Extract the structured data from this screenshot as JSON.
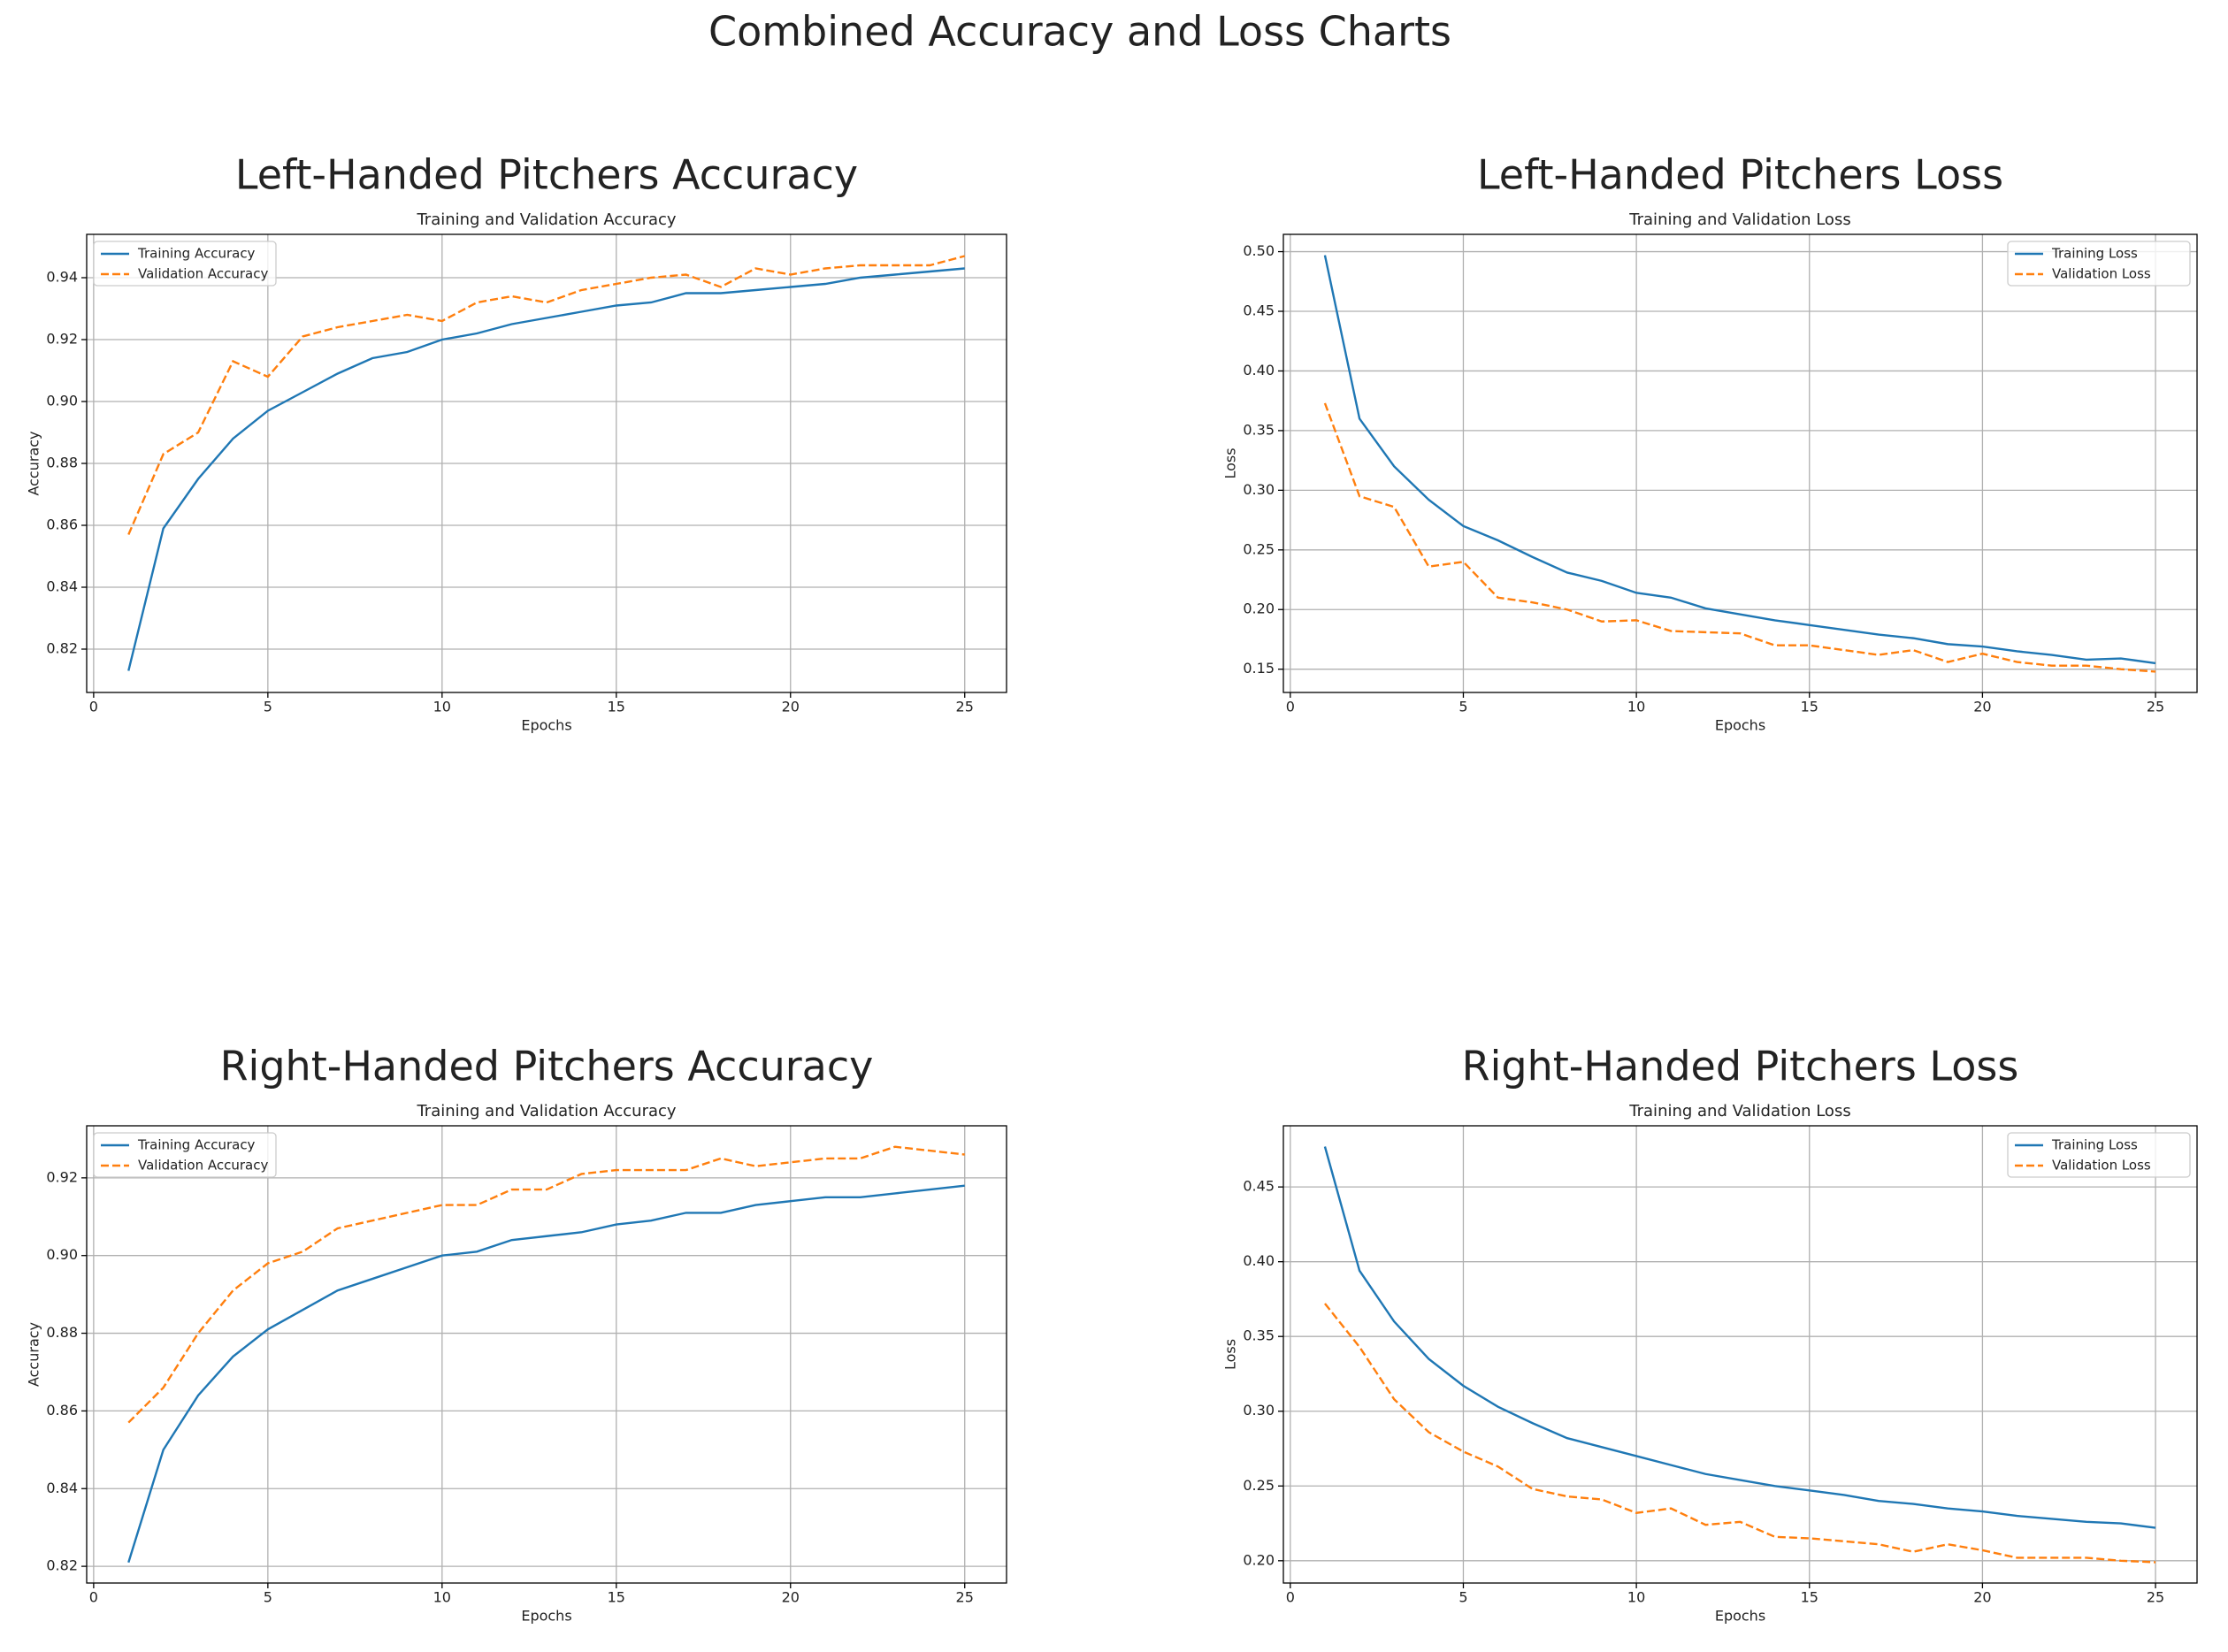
{
  "title": "Combined Accuracy and Loss Charts",
  "chart_data": [
    {
      "type": "line",
      "title": "Left-Handed Pitchers Accuracy",
      "subtitle": "Training and Validation Accuracy",
      "x_label": "Epochs",
      "y_label": "Accuracy",
      "x": [
        1,
        2,
        3,
        4,
        5,
        6,
        7,
        8,
        9,
        10,
        11,
        12,
        13,
        14,
        15,
        16,
        17,
        18,
        19,
        20,
        21,
        22,
        23,
        24,
        25
      ],
      "xlim": [
        -0.2,
        26.2
      ],
      "xticks": [
        0,
        5,
        10,
        15,
        20,
        25
      ],
      "ylim": [
        0.806,
        0.954
      ],
      "yticks": [
        0.82,
        0.84,
        0.86,
        0.88,
        {
          "value": 0.9,
          "label": "0.90"
        },
        0.92,
        0.94
      ],
      "grid": true,
      "legend": "upper-left",
      "series": [
        {
          "name": "Training Accuracy",
          "color": "#1f77b4",
          "linestyle": "solid",
          "values": [
            0.813,
            0.859,
            0.875,
            0.888,
            0.897,
            0.903,
            0.909,
            0.914,
            0.916,
            0.92,
            0.922,
            0.925,
            0.927,
            0.929,
            0.931,
            0.932,
            0.935,
            0.935,
            0.936,
            0.937,
            0.938,
            0.94,
            0.941,
            0.942,
            0.943
          ]
        },
        {
          "name": "Validation Accuracy",
          "color": "#ff7f0e",
          "linestyle": "dashed",
          "values": [
            0.857,
            0.883,
            0.89,
            0.913,
            0.908,
            0.921,
            0.924,
            0.926,
            0.928,
            0.926,
            0.932,
            0.934,
            0.932,
            0.936,
            0.938,
            0.94,
            0.941,
            0.937,
            0.943,
            0.941,
            0.943,
            0.944,
            0.944,
            0.944,
            0.947
          ]
        }
      ]
    },
    {
      "type": "line",
      "title": "Left-Handed Pitchers Loss",
      "subtitle": "Training and Validation Loss",
      "x_label": "Epochs",
      "y_label": "Loss",
      "x": [
        1,
        2,
        3,
        4,
        5,
        6,
        7,
        8,
        9,
        10,
        11,
        12,
        13,
        14,
        15,
        16,
        17,
        18,
        19,
        20,
        21,
        22,
        23,
        24,
        25
      ],
      "xlim": [
        -0.2,
        26.2
      ],
      "xticks": [
        0,
        5,
        10,
        15,
        20,
        25
      ],
      "ylim": [
        0.1305,
        0.5145
      ],
      "yticks": [
        0.15,
        {
          "value": 0.2,
          "label": "0.20"
        },
        0.25,
        {
          "value": 0.3,
          "label": "0.30"
        },
        0.35,
        {
          "value": 0.4,
          "label": "0.40"
        },
        0.45,
        {
          "value": 0.5,
          "label": "0.50"
        }
      ],
      "grid": true,
      "legend": "upper-right",
      "series": [
        {
          "name": "Training Loss",
          "color": "#1f77b4",
          "linestyle": "solid",
          "values": [
            0.497,
            0.36,
            0.32,
            0.292,
            0.27,
            0.258,
            0.244,
            0.231,
            0.224,
            0.214,
            0.21,
            0.201,
            0.196,
            0.191,
            0.187,
            0.183,
            0.179,
            0.176,
            0.171,
            0.169,
            0.165,
            0.162,
            0.158,
            0.159,
            0.155
          ]
        },
        {
          "name": "Validation Loss",
          "color": "#ff7f0e",
          "linestyle": "dashed",
          "values": [
            0.373,
            0.295,
            0.286,
            0.236,
            0.24,
            0.21,
            0.206,
            0.2,
            0.19,
            0.191,
            0.182,
            0.181,
            0.18,
            0.17,
            0.17,
            0.166,
            0.162,
            0.166,
            0.156,
            0.163,
            0.156,
            0.153,
            0.153,
            0.15,
            0.148
          ]
        }
      ]
    },
    {
      "type": "line",
      "title": "Right-Handed Pitchers Accuracy",
      "subtitle": "Training and Validation Accuracy",
      "x_label": "Epochs",
      "y_label": "Accuracy",
      "x": [
        1,
        2,
        3,
        4,
        5,
        6,
        7,
        8,
        9,
        10,
        11,
        12,
        13,
        14,
        15,
        16,
        17,
        18,
        19,
        20,
        21,
        22,
        23,
        24,
        25
      ],
      "xlim": [
        -0.2,
        26.2
      ],
      "xticks": [
        0,
        5,
        10,
        15,
        20,
        25
      ],
      "ylim": [
        0.8157,
        0.9334
      ],
      "yticks": [
        0.82,
        0.84,
        0.86,
        0.88,
        {
          "value": 0.9,
          "label": "0.90"
        },
        0.92
      ],
      "grid": true,
      "legend": "upper-left",
      "series": [
        {
          "name": "Training Accuracy",
          "color": "#1f77b4",
          "linestyle": "solid",
          "values": [
            0.821,
            0.85,
            0.864,
            0.874,
            0.881,
            0.886,
            0.891,
            0.894,
            0.897,
            0.9,
            0.901,
            0.904,
            0.905,
            0.906,
            0.908,
            0.909,
            0.911,
            0.911,
            0.913,
            0.914,
            0.915,
            0.915,
            0.916,
            0.917,
            0.918
          ]
        },
        {
          "name": "Validation Accuracy",
          "color": "#ff7f0e",
          "linestyle": "dashed",
          "values": [
            0.857,
            0.866,
            0.88,
            0.891,
            0.898,
            0.901,
            0.907,
            0.909,
            0.911,
            0.913,
            0.913,
            0.917,
            0.917,
            0.921,
            0.922,
            0.922,
            0.922,
            0.925,
            0.923,
            0.924,
            0.925,
            0.925,
            0.928,
            0.927,
            0.926
          ]
        }
      ]
    },
    {
      "type": "line",
      "title": "Right-Handed Pitchers Loss",
      "subtitle": "Training and Validation Loss",
      "x_label": "Epochs",
      "y_label": "Loss",
      "x": [
        1,
        2,
        3,
        4,
        5,
        6,
        7,
        8,
        9,
        10,
        11,
        12,
        13,
        14,
        15,
        16,
        17,
        18,
        19,
        20,
        21,
        22,
        23,
        24,
        25
      ],
      "xlim": [
        -0.2,
        26.2
      ],
      "xticks": [
        0,
        5,
        10,
        15,
        20,
        25
      ],
      "ylim": [
        0.1851,
        0.4909
      ],
      "yticks": [
        {
          "value": 0.2,
          "label": "0.20"
        },
        0.25,
        {
          "value": 0.3,
          "label": "0.30"
        },
        0.35,
        {
          "value": 0.4,
          "label": "0.40"
        },
        0.45
      ],
      "grid": true,
      "legend": "upper-right",
      "series": [
        {
          "name": "Training Loss",
          "color": "#1f77b4",
          "linestyle": "solid",
          "values": [
            0.477,
            0.394,
            0.36,
            0.335,
            0.317,
            0.303,
            0.292,
            0.282,
            0.276,
            0.27,
            0.264,
            0.258,
            0.254,
            0.25,
            0.247,
            0.244,
            0.24,
            0.238,
            0.235,
            0.233,
            0.23,
            0.228,
            0.226,
            0.225,
            0.222
          ]
        },
        {
          "name": "Validation Loss",
          "color": "#ff7f0e",
          "linestyle": "dashed",
          "values": [
            0.372,
            0.343,
            0.308,
            0.286,
            0.273,
            0.263,
            0.248,
            0.243,
            0.241,
            0.232,
            0.235,
            0.224,
            0.226,
            0.216,
            0.215,
            0.213,
            0.211,
            0.206,
            0.211,
            0.207,
            0.202,
            0.202,
            0.202,
            0.2,
            0.199
          ]
        }
      ]
    }
  ]
}
